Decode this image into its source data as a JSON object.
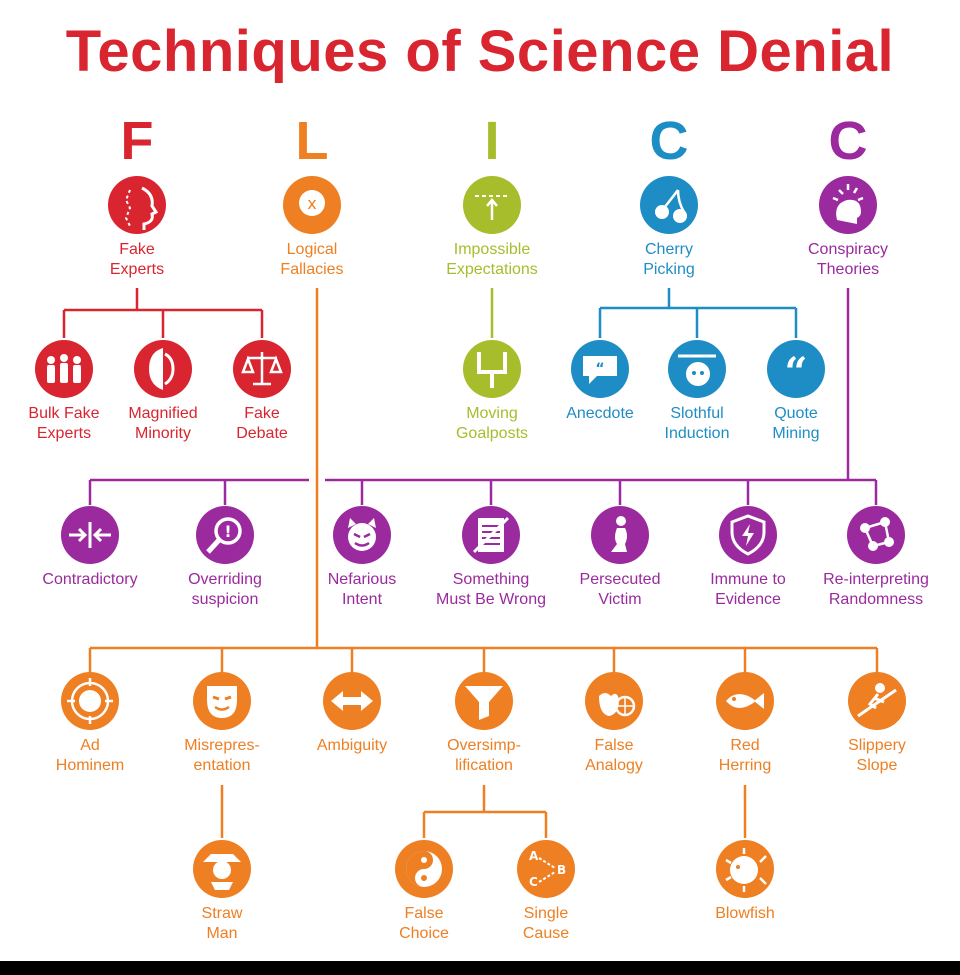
{
  "title": "Techniques of Science Denial",
  "colors": {
    "red": "#d9252f",
    "orange": "#ee7f22",
    "lime": "#a7bd2c",
    "blue": "#1f8dc5",
    "purple": "#9a2a9e"
  },
  "letters": [
    "F",
    "L",
    "I",
    "C",
    "C"
  ],
  "categories": [
    {
      "id": "fake-experts",
      "label": "Fake\nExperts",
      "icon": "profile-icon"
    },
    {
      "id": "logical-fallacies",
      "label": "Logical\nFallacies",
      "icon": "question-head-icon"
    },
    {
      "id": "impossible-expectations",
      "label": "Impossible\nExpectations",
      "icon": "bar-arrow-icon"
    },
    {
      "id": "cherry-picking",
      "label": "Cherry\nPicking",
      "icon": "cherries-icon"
    },
    {
      "id": "conspiracy-theories",
      "label": "Conspiracy\nTheories",
      "icon": "head-sparks-icon"
    }
  ],
  "fake_experts_children": [
    {
      "id": "bulk-fake-experts",
      "label": "Bulk Fake\nExperts",
      "icon": "crowd-icon"
    },
    {
      "id": "magnified-minority",
      "label": "Magnified\nMinority",
      "icon": "faces-icon"
    },
    {
      "id": "fake-debate",
      "label": "Fake\nDebate",
      "icon": "scales-icon"
    }
  ],
  "impossible_children": [
    {
      "id": "moving-goalposts",
      "label": "Moving\nGoalposts",
      "icon": "goalpost-icon"
    }
  ],
  "cherry_children": [
    {
      "id": "anecdote",
      "label": "Anecdote",
      "icon": "speech-bubble-icon"
    },
    {
      "id": "slothful-induction",
      "label": "Slothful\nInduction",
      "icon": "sloth-icon"
    },
    {
      "id": "quote-mining",
      "label": "Quote\nMining",
      "icon": "quote-marks-icon"
    }
  ],
  "conspiracy_children": [
    {
      "id": "contradictory",
      "label": "Contradictory",
      "icon": "arrows-in-icon"
    },
    {
      "id": "overriding-suspicion",
      "label": "Overriding\nsuspicion",
      "icon": "magnifier-icon"
    },
    {
      "id": "nefarious-intent",
      "label": "Nefarious\nIntent",
      "icon": "devil-icon"
    },
    {
      "id": "something-must-be-wrong",
      "label": "Something\nMust Be Wrong",
      "icon": "crossed-document-icon"
    },
    {
      "id": "persecuted-victim",
      "label": "Persecuted\nVictim",
      "icon": "kneeling-person-icon"
    },
    {
      "id": "immune-to-evidence",
      "label": "Immune to\nEvidence",
      "icon": "shield-bolt-icon"
    },
    {
      "id": "re-interpreting-randomness",
      "label": "Re-interpreting\nRandomness",
      "icon": "network-icon"
    }
  ],
  "fallacy_children": [
    {
      "id": "ad-hominem",
      "label": "Ad\nHominem",
      "icon": "target-head-icon"
    },
    {
      "id": "misrepresentation",
      "label": "Misrepres-\nentation",
      "icon": "mask-icon"
    },
    {
      "id": "ambiguity",
      "label": "Ambiguity",
      "icon": "double-arrow-icon"
    },
    {
      "id": "oversimplification",
      "label": "Oversimp-\nlification",
      "icon": "funnel-icon"
    },
    {
      "id": "false-analogy",
      "label": "False\nAnalogy",
      "icon": "apple-orange-icon"
    },
    {
      "id": "red-herring",
      "label": "Red\nHerring",
      "icon": "fish-icon"
    },
    {
      "id": "slippery-slope",
      "label": "Slippery\nSlope",
      "icon": "sliding-person-icon"
    }
  ],
  "misrep_children": [
    {
      "id": "straw-man",
      "label": "Straw\nMan",
      "icon": "scarecrow-icon"
    }
  ],
  "oversimp_children": [
    {
      "id": "false-choice",
      "label": "False\nChoice",
      "icon": "yin-yang-icon"
    },
    {
      "id": "single-cause",
      "label": "Single\nCause",
      "icon": "abc-arrows-icon"
    }
  ],
  "herring_children": [
    {
      "id": "blowfish",
      "label": "Blowfish",
      "icon": "blowfish-icon"
    }
  ],
  "icon_glyphs": {
    "abc-arrows-icon": [
      "A",
      "B",
      "C"
    ]
  }
}
